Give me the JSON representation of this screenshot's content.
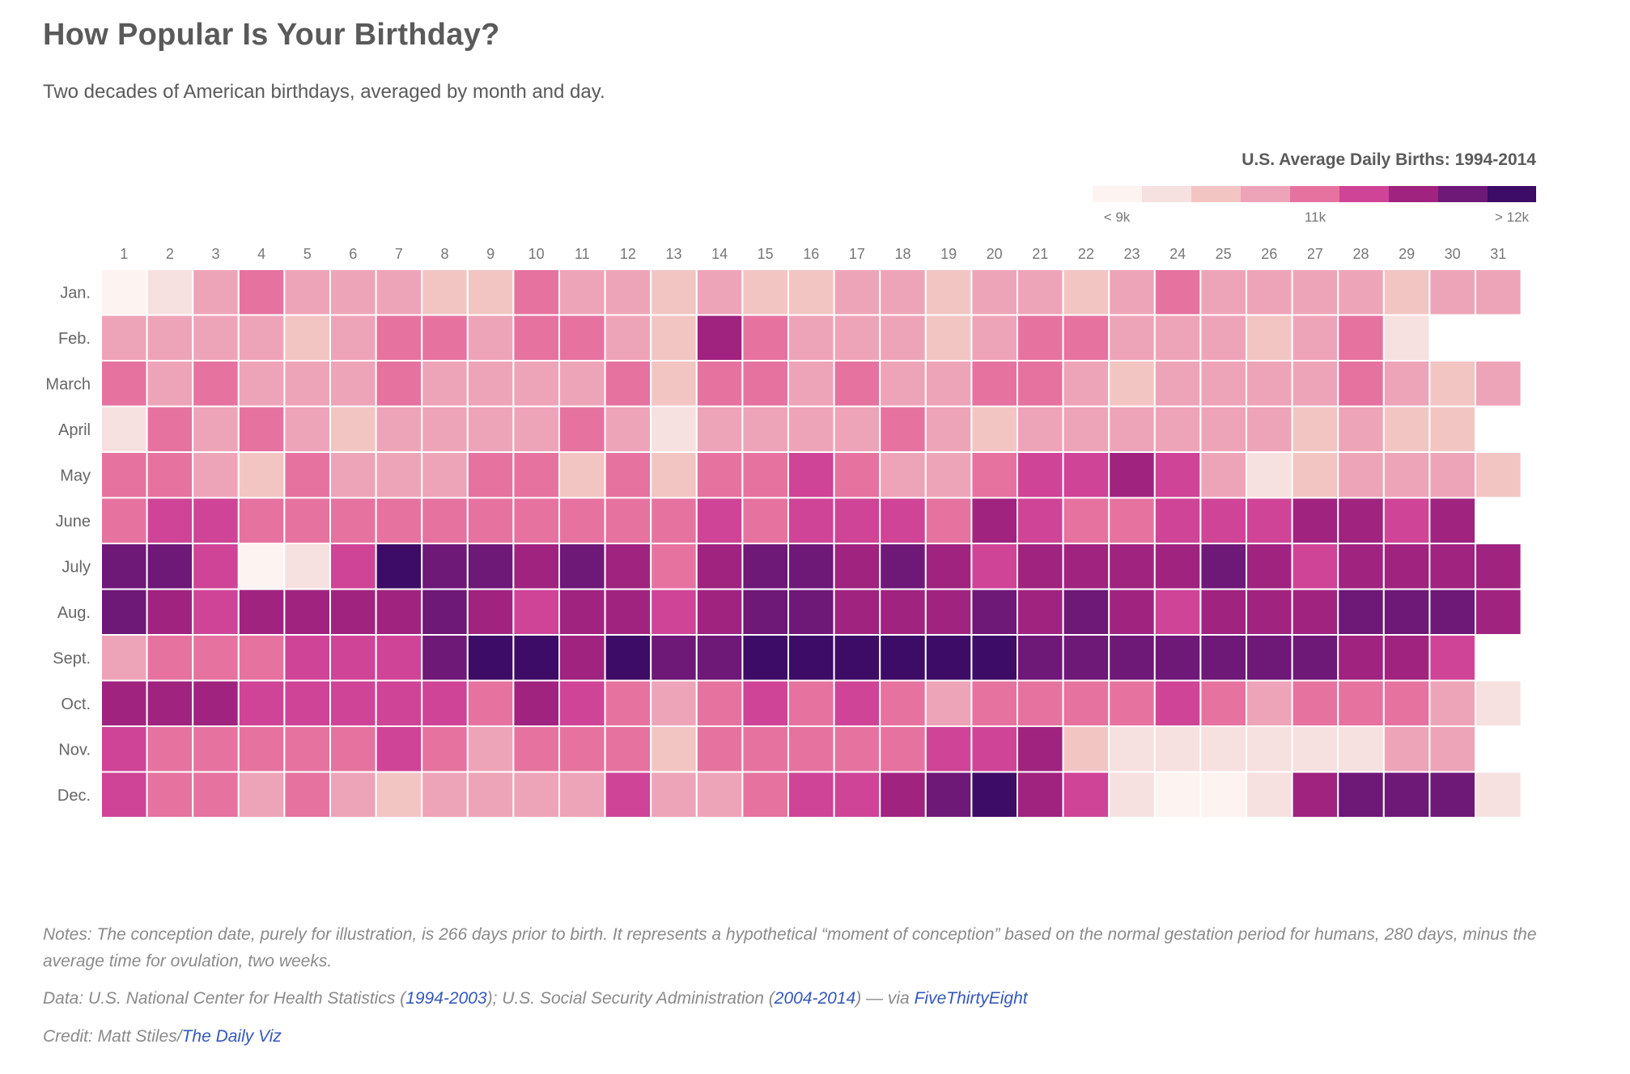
{
  "title": "How Popular Is Your Birthday?",
  "subtitle": "Two decades of American birthdays, averaged by month and day.",
  "legend": {
    "title": "U.S. Average Daily Births: 1994-2014",
    "colors": [
      "#fdf3f1",
      "#f6e0e0",
      "#f2c5c3",
      "#eea4b8",
      "#e6739f",
      "#cf4497",
      "#a0237f",
      "#6e1878",
      "#3c0c66"
    ],
    "labels": [
      "< 9k",
      "11k",
      "> 12k"
    ]
  },
  "chart_data": {
    "type": "heatmap",
    "x_categories": [
      "1",
      "2",
      "3",
      "4",
      "5",
      "6",
      "7",
      "8",
      "9",
      "10",
      "11",
      "12",
      "13",
      "14",
      "15",
      "16",
      "17",
      "18",
      "19",
      "20",
      "21",
      "22",
      "23",
      "24",
      "25",
      "26",
      "27",
      "28",
      "29",
      "30",
      "31"
    ],
    "y_categories": [
      "Jan.",
      "Feb.",
      "March",
      "April",
      "May",
      "June",
      "July",
      "Aug.",
      "Sept.",
      "Oct.",
      "Nov.",
      "Dec."
    ],
    "value_scale": "color level 0 (< 9k births) to 8 (> 12k births)",
    "values": [
      [
        0,
        1,
        3,
        4,
        3,
        3,
        3,
        2,
        2,
        4,
        3,
        3,
        2,
        3,
        2,
        2,
        3,
        3,
        2,
        3,
        3,
        2,
        3,
        4,
        3,
        3,
        3,
        3,
        2,
        3,
        3
      ],
      [
        3,
        3,
        3,
        3,
        2,
        3,
        4,
        4,
        3,
        4,
        4,
        3,
        2,
        6,
        4,
        3,
        3,
        3,
        2,
        3,
        4,
        4,
        3,
        3,
        3,
        2,
        3,
        4,
        1,
        null,
        null
      ],
      [
        4,
        3,
        4,
        3,
        3,
        3,
        4,
        3,
        3,
        3,
        3,
        4,
        2,
        4,
        4,
        3,
        4,
        3,
        3,
        4,
        4,
        3,
        2,
        3,
        3,
        3,
        3,
        4,
        3,
        2,
        3
      ],
      [
        1,
        4,
        3,
        4,
        3,
        2,
        3,
        3,
        3,
        3,
        4,
        3,
        1,
        3,
        3,
        3,
        3,
        4,
        3,
        2,
        3,
        3,
        3,
        3,
        3,
        3,
        2,
        3,
        2,
        2,
        null
      ],
      [
        4,
        4,
        3,
        2,
        4,
        3,
        3,
        3,
        4,
        4,
        2,
        4,
        2,
        4,
        4,
        5,
        4,
        3,
        3,
        4,
        5,
        5,
        6,
        5,
        3,
        1,
        2,
        3,
        3,
        3,
        2
      ],
      [
        4,
        5,
        5,
        4,
        4,
        4,
        4,
        4,
        4,
        4,
        4,
        4,
        4,
        5,
        4,
        5,
        5,
        5,
        4,
        6,
        5,
        4,
        4,
        5,
        5,
        5,
        6,
        6,
        5,
        6,
        null
      ],
      [
        7,
        7,
        5,
        0,
        1,
        5,
        8,
        7,
        7,
        6,
        7,
        6,
        4,
        6,
        7,
        7,
        6,
        7,
        6,
        5,
        6,
        6,
        6,
        6,
        7,
        6,
        5,
        6,
        6,
        6,
        6
      ],
      [
        7,
        6,
        5,
        6,
        6,
        6,
        6,
        7,
        6,
        5,
        6,
        6,
        5,
        6,
        7,
        7,
        6,
        6,
        6,
        7,
        6,
        7,
        6,
        5,
        6,
        6,
        6,
        7,
        7,
        7,
        6
      ],
      [
        3,
        4,
        4,
        4,
        5,
        5,
        5,
        7,
        8,
        8,
        6,
        8,
        7,
        7,
        8,
        8,
        8,
        8,
        8,
        8,
        7,
        7,
        7,
        7,
        7,
        7,
        7,
        6,
        6,
        5,
        null
      ],
      [
        6,
        6,
        6,
        5,
        5,
        5,
        5,
        5,
        4,
        6,
        5,
        4,
        3,
        4,
        5,
        4,
        5,
        4,
        3,
        4,
        4,
        4,
        4,
        5,
        4,
        3,
        4,
        4,
        4,
        3,
        1
      ],
      [
        5,
        4,
        4,
        4,
        4,
        4,
        5,
        4,
        3,
        4,
        4,
        4,
        2,
        4,
        4,
        4,
        4,
        4,
        5,
        5,
        6,
        2,
        1,
        1,
        1,
        1,
        1,
        1,
        3,
        3,
        null
      ],
      [
        5,
        4,
        4,
        3,
        4,
        3,
        2,
        3,
        3,
        3,
        3,
        5,
        3,
        3,
        4,
        5,
        5,
        6,
        7,
        8,
        6,
        5,
        1,
        0,
        0,
        1,
        6,
        7,
        7,
        7,
        1
      ]
    ]
  },
  "notes": "Notes: The conception date, purely for illustration, is 266 days prior to birth. It represents a hypothetical “moment of conception” based on the normal gestation period for humans, 280 days, minus the average time for ovulation, two weeks.",
  "data_source": {
    "prefix": "Data: U.S. National Center for Health Statistics (",
    "link1": "1994-2003",
    "middle": "); U.S. Social Security Administration (",
    "link2": "2004-2014",
    "suffix": ") — via ",
    "link3": "FiveThirtyEight"
  },
  "credit": {
    "prefix": "Credit: Matt Stiles/",
    "link": "The Daily Viz"
  }
}
